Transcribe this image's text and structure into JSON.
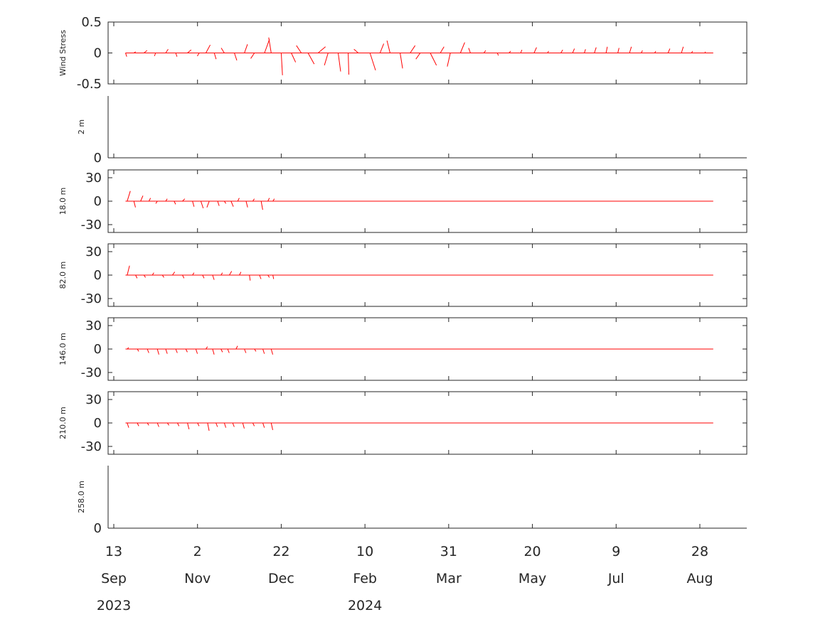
{
  "chart_data": {
    "type": "stick",
    "colors": {
      "sticks": "#ff0000",
      "axes": "#262626",
      "background": "#ffffff"
    },
    "x_axis": {
      "start": "2023-09-13",
      "end": "2024-09-20",
      "ticks": [
        {
          "date": "2023-09-13",
          "day": "13",
          "month": "Sep",
          "year": "2023"
        },
        {
          "date": "2023-11-02",
          "day": "2",
          "month": "Nov",
          "year": ""
        },
        {
          "date": "2023-12-22",
          "day": "22",
          "month": "Dec",
          "year": ""
        },
        {
          "date": "2024-02-10",
          "day": "10",
          "month": "Feb",
          "year": "2024"
        },
        {
          "date": "2024-03-31",
          "day": "31",
          "month": "Mar",
          "year": ""
        },
        {
          "date": "2024-05-20",
          "day": "20",
          "month": "May",
          "year": ""
        },
        {
          "date": "2024-07-09",
          "day": "9",
          "month": "Jul",
          "year": ""
        },
        {
          "date": "2024-08-28",
          "day": "28",
          "month": "Aug",
          "year": ""
        }
      ]
    },
    "panels": [
      {
        "ylabel": "Wind Stress",
        "ylim": [
          -0.5,
          0.5
        ],
        "yticks": [
          {
            "v": 0.5,
            "t": "0.5"
          },
          {
            "v": 0,
            "t": "0"
          },
          {
            "v": -0.5,
            "t": "-0.5"
          }
        ],
        "data_start": "2023-09-20",
        "data_end": "2024-09-05",
        "series": [
          {
            "date": "2023-09-20",
            "u": 0.02,
            "v": -0.06
          },
          {
            "date": "2023-09-25",
            "u": 0.03,
            "v": 0.02
          },
          {
            "date": "2023-10-01",
            "u": 0.05,
            "v": 0.04
          },
          {
            "date": "2023-10-08",
            "u": -0.02,
            "v": -0.05
          },
          {
            "date": "2023-10-14",
            "u": 0.04,
            "v": 0.06
          },
          {
            "date": "2023-10-20",
            "u": 0.02,
            "v": -0.06
          },
          {
            "date": "2023-10-27",
            "u": 0.06,
            "v": 0.05
          },
          {
            "date": "2023-11-03",
            "u": -0.03,
            "v": -0.05
          },
          {
            "date": "2023-11-07",
            "u": 0.07,
            "v": 0.13
          },
          {
            "date": "2023-11-12",
            "u": 0.03,
            "v": -0.1
          },
          {
            "date": "2023-11-18",
            "u": -0.05,
            "v": 0.08
          },
          {
            "date": "2023-11-24",
            "u": 0.04,
            "v": -0.12
          },
          {
            "date": "2023-11-30",
            "u": 0.05,
            "v": 0.14
          },
          {
            "date": "2023-12-06",
            "u": -0.06,
            "v": -0.09
          },
          {
            "date": "2023-12-12",
            "u": 0.08,
            "v": 0.22
          },
          {
            "date": "2023-12-16",
            "u": -0.04,
            "v": 0.25
          },
          {
            "date": "2023-12-22",
            "u": 0.02,
            "v": -0.36
          },
          {
            "date": "2023-12-28",
            "u": 0.07,
            "v": -0.15
          },
          {
            "date": "2024-01-03",
            "u": -0.08,
            "v": 0.12
          },
          {
            "date": "2024-01-07",
            "u": 0.1,
            "v": -0.18
          },
          {
            "date": "2024-01-13",
            "u": 0.12,
            "v": 0.1
          },
          {
            "date": "2024-01-19",
            "u": -0.06,
            "v": -0.2
          },
          {
            "date": "2024-01-25",
            "u": 0.04,
            "v": -0.3
          },
          {
            "date": "2024-01-31",
            "u": 0.01,
            "v": -0.35
          },
          {
            "date": "2024-02-06",
            "u": -0.07,
            "v": 0.06
          },
          {
            "date": "2024-02-13",
            "u": 0.09,
            "v": -0.28
          },
          {
            "date": "2024-02-19",
            "u": 0.06,
            "v": 0.15
          },
          {
            "date": "2024-02-25",
            "u": -0.05,
            "v": 0.2
          },
          {
            "date": "2024-03-02",
            "u": 0.04,
            "v": -0.25
          },
          {
            "date": "2024-03-08",
            "u": 0.08,
            "v": 0.12
          },
          {
            "date": "2024-03-14",
            "u": -0.07,
            "v": -0.1
          },
          {
            "date": "2024-03-20",
            "u": 0.1,
            "v": -0.2
          },
          {
            "date": "2024-03-26",
            "u": 0.06,
            "v": 0.1
          },
          {
            "date": "2024-04-01",
            "u": -0.05,
            "v": -0.22
          },
          {
            "date": "2024-04-07",
            "u": 0.07,
            "v": 0.17
          },
          {
            "date": "2024-04-13",
            "u": -0.03,
            "v": 0.08
          },
          {
            "date": "2024-04-21",
            "u": 0.03,
            "v": 0.04
          },
          {
            "date": "2024-04-29",
            "u": 0.02,
            "v": -0.04
          },
          {
            "date": "2024-05-06",
            "u": 0.03,
            "v": 0.03
          },
          {
            "date": "2024-05-13",
            "u": 0.02,
            "v": 0.05
          },
          {
            "date": "2024-05-21",
            "u": 0.04,
            "v": 0.09
          },
          {
            "date": "2024-05-29",
            "u": 0.02,
            "v": 0.03
          },
          {
            "date": "2024-06-06",
            "u": 0.03,
            "v": 0.05
          },
          {
            "date": "2024-06-13",
            "u": 0.03,
            "v": 0.07
          },
          {
            "date": "2024-06-20",
            "u": 0.02,
            "v": 0.06
          },
          {
            "date": "2024-06-26",
            "u": 0.03,
            "v": 0.09
          },
          {
            "date": "2024-07-03",
            "u": 0.02,
            "v": 0.1
          },
          {
            "date": "2024-07-10",
            "u": 0.02,
            "v": 0.08
          },
          {
            "date": "2024-07-17",
            "u": 0.03,
            "v": 0.1
          },
          {
            "date": "2024-07-24",
            "u": 0.02,
            "v": 0.04
          },
          {
            "date": "2024-08-01",
            "u": 0.02,
            "v": 0.03
          },
          {
            "date": "2024-08-09",
            "u": 0.03,
            "v": 0.07
          },
          {
            "date": "2024-08-17",
            "u": 0.03,
            "v": 0.1
          },
          {
            "date": "2024-08-23",
            "u": 0.02,
            "v": 0.03
          },
          {
            "date": "2024-08-31",
            "u": 0.01,
            "v": 0.02
          }
        ]
      },
      {
        "ylabel": "2 m",
        "ylim": [
          0,
          1
        ],
        "yticks": [
          {
            "v": 0,
            "t": "0"
          }
        ],
        "series": []
      },
      {
        "ylabel": "18.0 m",
        "ylim": [
          -40,
          40
        ],
        "yticks": [
          {
            "v": 30,
            "t": "30"
          },
          {
            "v": 0,
            "t": "0"
          },
          {
            "v": -30,
            "t": "-30"
          }
        ],
        "data_start": "2023-09-20",
        "data_end": "2024-09-05",
        "series": [
          {
            "date": "2023-09-21",
            "u": 4,
            "v": 13
          },
          {
            "date": "2023-09-25",
            "u": 2,
            "v": -8
          },
          {
            "date": "2023-09-29",
            "u": 3,
            "v": 7
          },
          {
            "date": "2023-10-04",
            "u": 2,
            "v": 4
          },
          {
            "date": "2023-10-09",
            "u": -2,
            "v": -3
          },
          {
            "date": "2023-10-14",
            "u": 2,
            "v": 3
          },
          {
            "date": "2023-10-19",
            "u": 2,
            "v": -4
          },
          {
            "date": "2023-10-24",
            "u": 3,
            "v": 3
          },
          {
            "date": "2023-10-30",
            "u": 2,
            "v": -7
          },
          {
            "date": "2023-11-04",
            "u": 3,
            "v": -9
          },
          {
            "date": "2023-11-09",
            "u": -3,
            "v": -8
          },
          {
            "date": "2023-11-14",
            "u": 2,
            "v": -6
          },
          {
            "date": "2023-11-18",
            "u": 2,
            "v": -3
          },
          {
            "date": "2023-11-22",
            "u": 3,
            "v": -7
          },
          {
            "date": "2023-11-26",
            "u": 2,
            "v": 4
          },
          {
            "date": "2023-12-01",
            "u": 2,
            "v": -8
          },
          {
            "date": "2023-12-05",
            "u": 2,
            "v": 3
          },
          {
            "date": "2023-12-10",
            "u": 2,
            "v": -11
          },
          {
            "date": "2023-12-14",
            "u": 2,
            "v": 4
          },
          {
            "date": "2023-12-17",
            "u": 2,
            "v": 3
          }
        ]
      },
      {
        "ylabel": "82.0 m",
        "ylim": [
          -40,
          40
        ],
        "yticks": [
          {
            "v": 30,
            "t": "30"
          },
          {
            "v": 0,
            "t": "0"
          },
          {
            "v": -30,
            "t": "-30"
          }
        ],
        "data_start": "2023-09-20",
        "data_end": "2024-09-05",
        "series": [
          {
            "date": "2023-09-21",
            "u": 3,
            "v": 12
          },
          {
            "date": "2023-09-26",
            "u": 2,
            "v": -4
          },
          {
            "date": "2023-10-01",
            "u": 2,
            "v": -3
          },
          {
            "date": "2023-10-06",
            "u": 2,
            "v": 3
          },
          {
            "date": "2023-10-12",
            "u": 2,
            "v": -3
          },
          {
            "date": "2023-10-18",
            "u": 3,
            "v": 4
          },
          {
            "date": "2023-10-24",
            "u": 2,
            "v": -4
          },
          {
            "date": "2023-10-30",
            "u": 2,
            "v": 3
          },
          {
            "date": "2023-11-05",
            "u": 2,
            "v": -4
          },
          {
            "date": "2023-11-11",
            "u": 2,
            "v": -6
          },
          {
            "date": "2023-11-16",
            "u": 2,
            "v": 3
          },
          {
            "date": "2023-11-21",
            "u": 3,
            "v": 5
          },
          {
            "date": "2023-11-27",
            "u": 2,
            "v": 4
          },
          {
            "date": "2023-12-03",
            "u": 1,
            "v": -7
          },
          {
            "date": "2023-12-09",
            "u": 2,
            "v": -5
          },
          {
            "date": "2023-12-14",
            "u": 2,
            "v": -3
          },
          {
            "date": "2023-12-17",
            "u": 1,
            "v": -5
          }
        ]
      },
      {
        "ylabel": "146.0 m",
        "ylim": [
          -40,
          40
        ],
        "yticks": [
          {
            "v": 30,
            "t": "30"
          },
          {
            "v": 0,
            "t": "0"
          },
          {
            "v": -30,
            "t": "-30"
          }
        ],
        "data_start": "2023-09-20",
        "data_end": "2024-09-05",
        "series": [
          {
            "date": "2023-09-21",
            "u": 2,
            "v": 2
          },
          {
            "date": "2023-09-27",
            "u": 2,
            "v": -3
          },
          {
            "date": "2023-10-03",
            "u": 2,
            "v": -5
          },
          {
            "date": "2023-10-09",
            "u": 2,
            "v": -7
          },
          {
            "date": "2023-10-14",
            "u": 2,
            "v": -6
          },
          {
            "date": "2023-10-20",
            "u": 2,
            "v": -5
          },
          {
            "date": "2023-10-26",
            "u": 2,
            "v": -4
          },
          {
            "date": "2023-11-01",
            "u": 2,
            "v": -6
          },
          {
            "date": "2023-11-07",
            "u": 2,
            "v": 3
          },
          {
            "date": "2023-11-11",
            "u": 2,
            "v": -7
          },
          {
            "date": "2023-11-16",
            "u": 2,
            "v": -4
          },
          {
            "date": "2023-11-20",
            "u": 2,
            "v": -5
          },
          {
            "date": "2023-11-25",
            "u": 2,
            "v": 4
          },
          {
            "date": "2023-11-30",
            "u": 2,
            "v": -5
          },
          {
            "date": "2023-12-06",
            "u": 2,
            "v": -3
          },
          {
            "date": "2023-12-11",
            "u": 2,
            "v": -6
          },
          {
            "date": "2023-12-16",
            "u": 2,
            "v": -7
          }
        ]
      },
      {
        "ylabel": "210.0 m",
        "ylim": [
          -40,
          40
        ],
        "yticks": [
          {
            "v": 30,
            "t": "30"
          },
          {
            "v": 0,
            "t": "0"
          },
          {
            "v": -30,
            "t": "-30"
          }
        ],
        "data_start": "2023-09-20",
        "data_end": "2024-09-05",
        "series": [
          {
            "date": "2023-09-21",
            "u": 2,
            "v": -6
          },
          {
            "date": "2023-09-27",
            "u": 2,
            "v": -4
          },
          {
            "date": "2023-10-03",
            "u": 2,
            "v": -3
          },
          {
            "date": "2023-10-09",
            "u": 2,
            "v": -5
          },
          {
            "date": "2023-10-15",
            "u": 2,
            "v": -3
          },
          {
            "date": "2023-10-21",
            "u": 2,
            "v": -4
          },
          {
            "date": "2023-10-27",
            "u": 2,
            "v": -8
          },
          {
            "date": "2023-11-02",
            "u": 2,
            "v": -4
          },
          {
            "date": "2023-11-08",
            "u": 2,
            "v": -10
          },
          {
            "date": "2023-11-13",
            "u": 2,
            "v": -5
          },
          {
            "date": "2023-11-18",
            "u": 2,
            "v": -6
          },
          {
            "date": "2023-11-23",
            "u": 2,
            "v": -5
          },
          {
            "date": "2023-11-29",
            "u": 2,
            "v": -7
          },
          {
            "date": "2023-12-05",
            "u": 2,
            "v": -4
          },
          {
            "date": "2023-12-11",
            "u": 2,
            "v": -6
          },
          {
            "date": "2023-12-16",
            "u": 2,
            "v": -9
          }
        ]
      },
      {
        "ylabel": "258.0 m",
        "ylim": [
          0,
          1
        ],
        "yticks": [
          {
            "v": 0,
            "t": "0"
          }
        ],
        "series": []
      }
    ]
  }
}
